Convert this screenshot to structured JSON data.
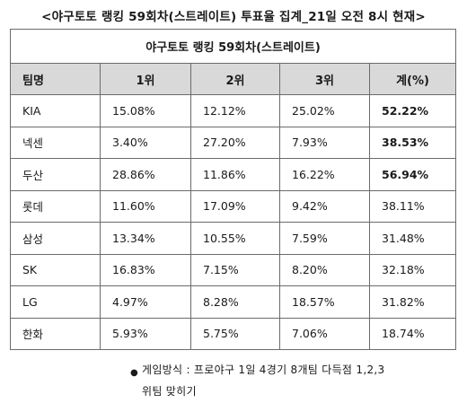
{
  "title": "<야구토토 랭킹 59회차(스트레이트) 투표율 집계_21일 오전 8시 현재>",
  "table": {
    "caption": "야구토토 랭킹 59회차(스트레이트)",
    "headers": [
      "팀명",
      "1위",
      "2위",
      "3위",
      "계(%)"
    ],
    "rows": [
      {
        "team": "KIA",
        "first": "15.08%",
        "second": "12.12%",
        "third": "25.02%",
        "total": "52.22%",
        "total_bold": true
      },
      {
        "team": "넥센",
        "first": "3.40%",
        "second": "27.20%",
        "third": "7.93%",
        "total": "38.53%",
        "total_bold": true
      },
      {
        "team": "두산",
        "first": "28.86%",
        "second": "11.86%",
        "third": "16.22%",
        "total": "56.94%",
        "total_bold": true
      },
      {
        "team": "롯데",
        "first": "11.60%",
        "second": "17.09%",
        "third": "9.42%",
        "total": "38.11%",
        "total_bold": false
      },
      {
        "team": "삼성",
        "first": "13.34%",
        "second": "10.55%",
        "third": "7.59%",
        "total": "31.48%",
        "total_bold": false
      },
      {
        "team": "SK",
        "first": "16.83%",
        "second": "7.15%",
        "third": "8.20%",
        "total": "32.18%",
        "total_bold": false
      },
      {
        "team": "LG",
        "first": "4.97%",
        "second": "8.28%",
        "third": "18.57%",
        "total": "31.82%",
        "total_bold": false
      },
      {
        "team": "한화",
        "first": "5.93%",
        "second": "5.75%",
        "third": "7.06%",
        "total": "18.74%",
        "total_bold": false
      }
    ]
  },
  "footnote": {
    "bullet": "●",
    "line1": "게임방식 : 프로야구 1일 4경기 8개팀 다득점 1,2,3",
    "line2": "위팀 맞히기"
  }
}
